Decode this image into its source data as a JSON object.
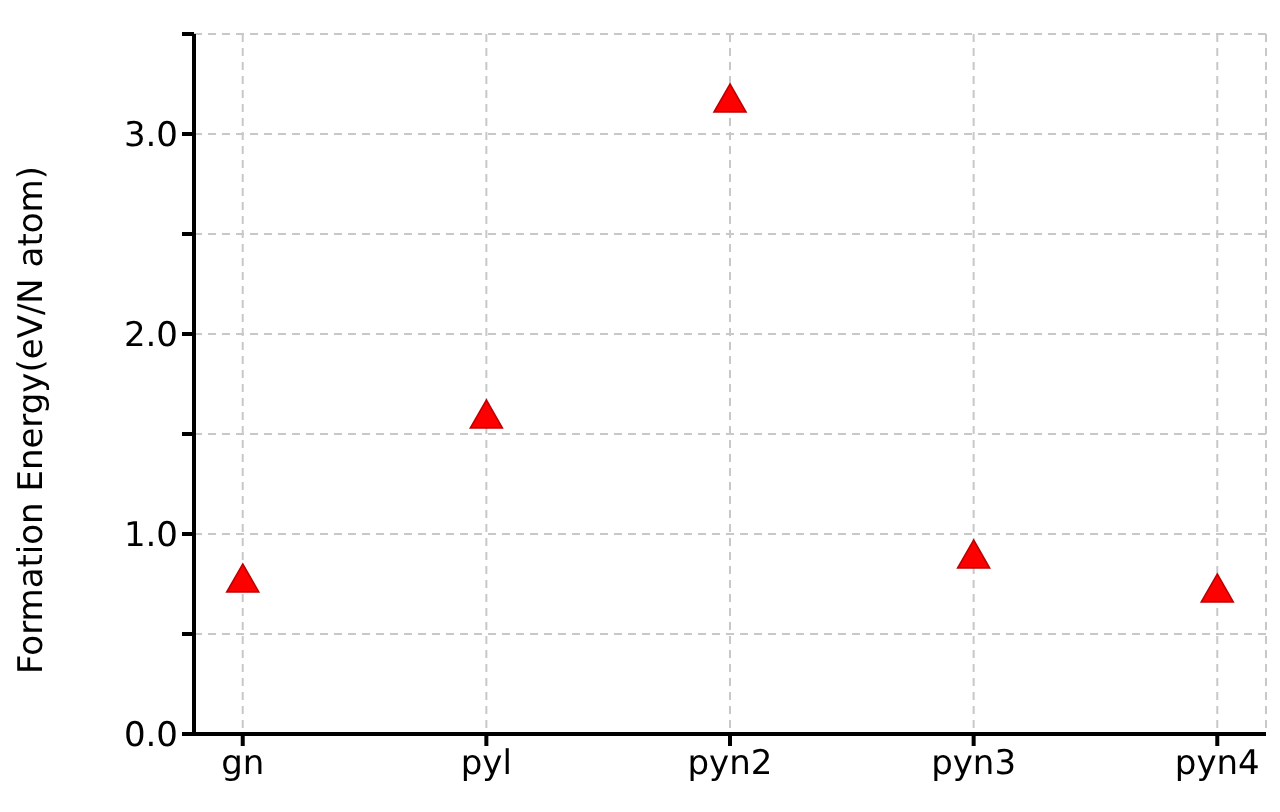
{
  "chart_data": {
    "type": "scatter",
    "ylabel": "Formation Energy(eV/N atom)",
    "categories": [
      "gn",
      "pyl",
      "pyn2",
      "pyn3",
      "pyn4"
    ],
    "values": [
      0.77,
      1.59,
      3.17,
      0.89,
      0.72
    ],
    "color": "#ff0000",
    "ylim": [
      0,
      3.5
    ],
    "yticks": [
      {
        "value": 0,
        "label": "0.0"
      },
      {
        "value": 0.5,
        "label": null
      },
      {
        "value": 1,
        "label": "1.0"
      },
      {
        "value": 1.5,
        "label": null
      },
      {
        "value": 2,
        "label": "2.0"
      },
      {
        "value": 2.5,
        "label": null
      },
      {
        "value": 3,
        "label": "3.0"
      },
      {
        "value": 3.5,
        "label": null
      }
    ],
    "grid": true,
    "marker": "triangle"
  }
}
